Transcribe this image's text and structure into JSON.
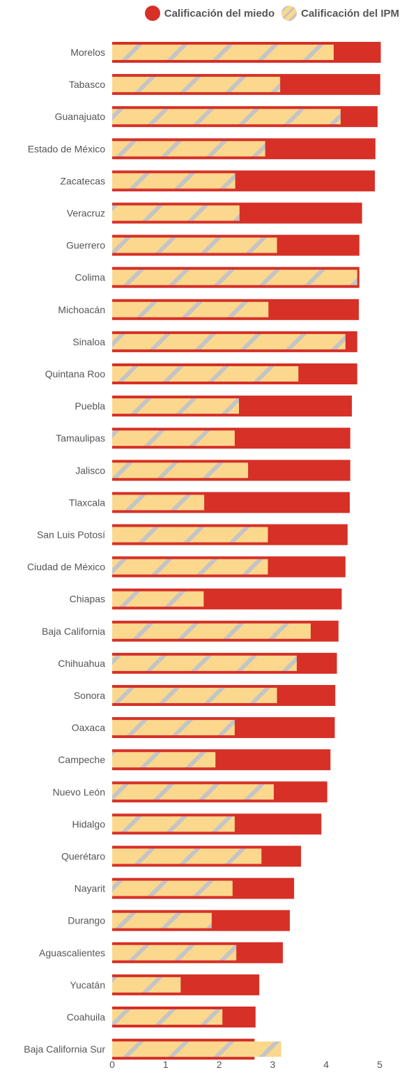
{
  "chart_data": {
    "type": "bar",
    "orientation": "horizontal",
    "categories": [
      "Morelos",
      "Tabasco",
      "Guanajuato",
      "Estado de México",
      "Zacatecas",
      "Veracruz",
      "Guerrero",
      "Colima",
      "Michoacán",
      "Sinaloa",
      "Quintana Roo",
      "Puebla",
      "Tamaulipas",
      "Jalisco",
      "Tlaxcala",
      "San Luis Potosí",
      "Ciudad de México",
      "Chiapas",
      "Baja California",
      "Chihuahua",
      "Sonora",
      "Oaxaca",
      "Campeche",
      "Nuevo León",
      "Hidalgo",
      "Querétaro",
      "Nayarit",
      "Durango",
      "Aguascalientes",
      "Yucatán",
      "Coahuila",
      "Baja California Sur"
    ],
    "series": [
      {
        "name": "Calificación del miedo",
        "color": "#d63027",
        "values": [
          5.02,
          5.01,
          4.96,
          4.92,
          4.91,
          4.67,
          4.62,
          4.62,
          4.61,
          4.58,
          4.58,
          4.48,
          4.45,
          4.45,
          4.44,
          4.4,
          4.36,
          4.29,
          4.23,
          4.2,
          4.17,
          4.16,
          4.08,
          4.02,
          3.91,
          3.53,
          3.4,
          3.32,
          3.19,
          2.75,
          2.68,
          2.66
        ]
      },
      {
        "name": "Calificación del IPM",
        "color": "#fbd88e",
        "stripe_color": "#c4c4c4",
        "values": [
          4.14,
          3.14,
          4.27,
          2.86,
          2.3,
          2.38,
          3.08,
          4.58,
          2.92,
          4.36,
          3.48,
          2.37,
          2.29,
          2.54,
          1.72,
          2.91,
          2.91,
          1.71,
          3.71,
          3.45,
          3.08,
          2.29,
          1.93,
          3.02,
          2.29,
          2.79,
          2.25,
          1.86,
          2.32,
          1.28,
          2.06,
          3.16
        ]
      }
    ],
    "xlim": [
      0,
      5
    ],
    "xticks": [
      "0",
      "1",
      "2",
      "3",
      "4",
      "5"
    ],
    "grid": false,
    "legend_position": "top-right"
  }
}
